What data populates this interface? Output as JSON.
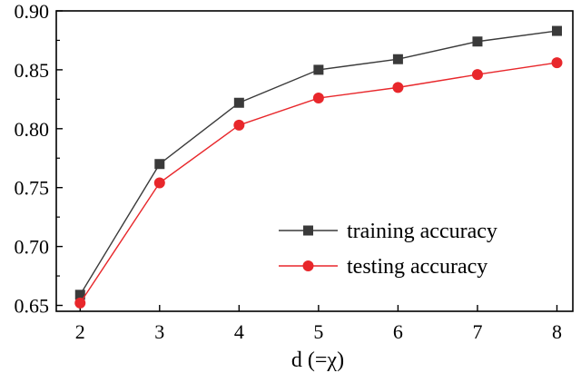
{
  "chart_data": {
    "type": "line",
    "x": [
      2,
      3,
      4,
      5,
      6,
      7,
      8
    ],
    "xlabel": "d (=χ)",
    "ylabel": "",
    "xlim": [
      1.7,
      8.2
    ],
    "ylim": [
      0.645,
      0.9
    ],
    "xticks": [
      2,
      3,
      4,
      5,
      6,
      7,
      8
    ],
    "yticks": [
      0.65,
      0.7,
      0.75,
      0.8,
      0.85,
      0.9
    ],
    "ytick_labels": [
      "0.65",
      "0.70",
      "0.75",
      "0.80",
      "0.85",
      "0.90"
    ],
    "grid": false,
    "legend_position": "lower-right",
    "series": [
      {
        "name": "training accuracy",
        "values": [
          0.659,
          0.77,
          0.822,
          0.85,
          0.859,
          0.874,
          0.883
        ],
        "color": "#3a3a3a",
        "marker": "square"
      },
      {
        "name": "testing accuracy",
        "values": [
          0.652,
          0.754,
          0.803,
          0.826,
          0.835,
          0.846,
          0.856
        ],
        "color": "#e8272b",
        "marker": "circle"
      }
    ]
  }
}
